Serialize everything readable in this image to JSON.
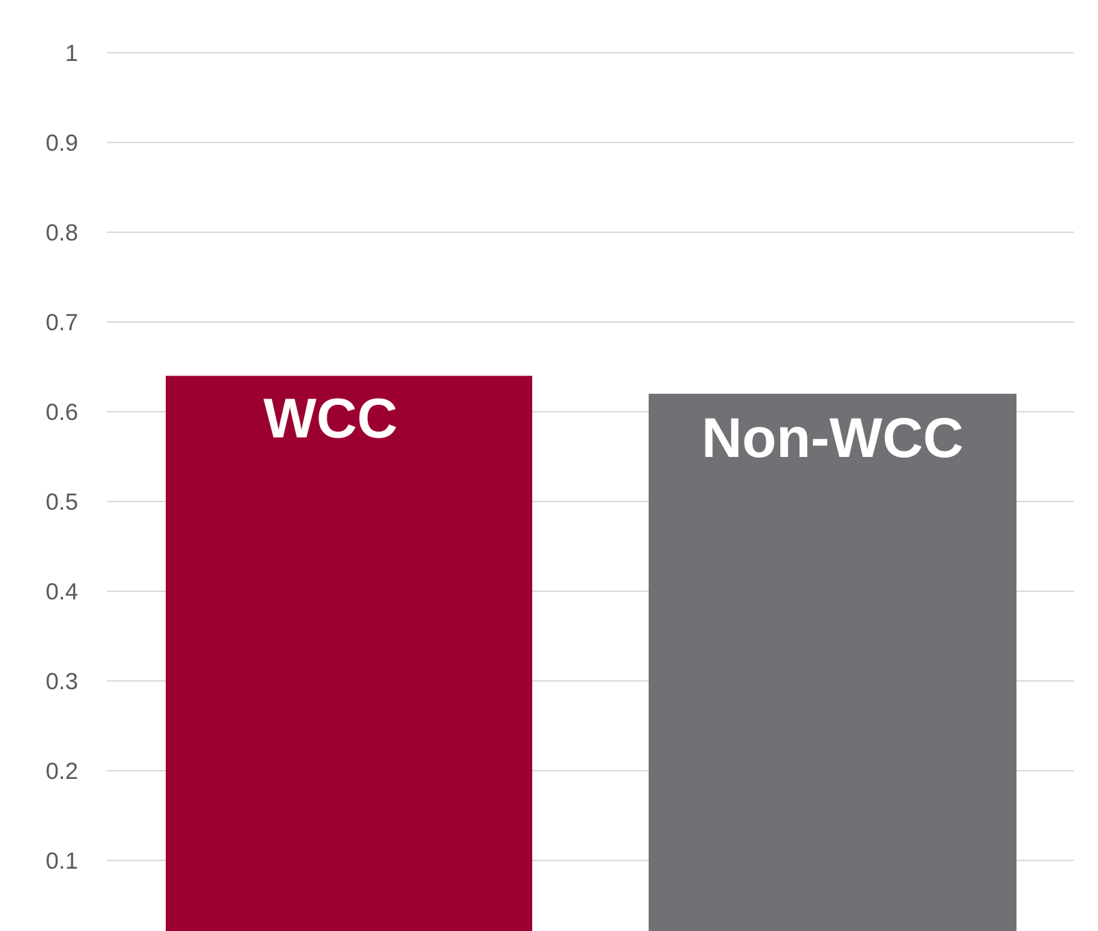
{
  "chart_data": {
    "type": "bar",
    "title": "",
    "xlabel": "",
    "ylabel": "",
    "ylim": [
      0.05,
      1.0
    ],
    "ytick_values": [
      1,
      0.9,
      0.8,
      0.7,
      0.6,
      0.5,
      0.4,
      0.3,
      0.2,
      0.1
    ],
    "ytick_labels": [
      "1",
      "0.9",
      "0.8",
      "0.7",
      "0.6",
      "0.5",
      "0.4",
      "0.3",
      "0.2",
      "0.1"
    ],
    "grid": true,
    "legend": "none",
    "categories": [
      "WCC",
      "Non-WCC"
    ],
    "values": [
      0.64,
      0.62
    ],
    "bar_labels": [
      "WCC",
      "Non-WCC"
    ],
    "colors": [
      "#9c0030",
      "#717175"
    ]
  }
}
